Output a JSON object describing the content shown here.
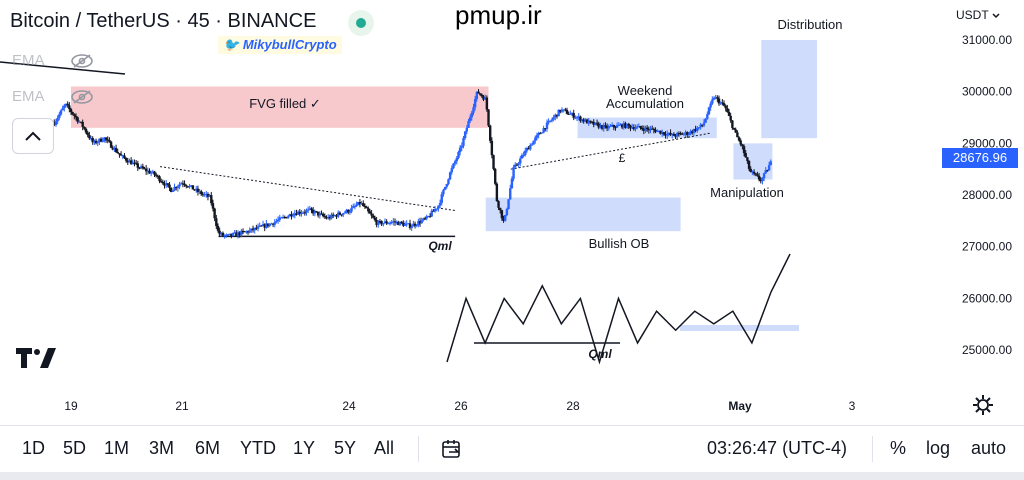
{
  "header": {
    "symbol_title": "Bitcoin / TetherUS · 45 · BINANCE",
    "watermark": "pmup.ir",
    "author": "MikybullCrypto",
    "currency_label": "USDT",
    "indicators": [
      "EMA",
      "EMA"
    ]
  },
  "colors": {
    "up": "#2962ff",
    "down": "#131722",
    "fvg_zone": "#f7c9cc",
    "blue_zone": "#cfdcfb",
    "accent": "#2962ff",
    "status_dot": "#22ab94"
  },
  "chart_data": {
    "type": "candlestick",
    "y_axis": {
      "ticks": [
        31000,
        30000,
        29000,
        28000,
        27000,
        26000,
        25000
      ],
      "tick_labels": [
        "31000.00",
        "30000.00",
        "29000.00",
        "28000.00",
        "27000.00",
        "26000.00",
        "25000.00"
      ],
      "current_price": 28676.96,
      "current_price_label": "28676.96"
    },
    "x_axis": {
      "tick_labels": [
        "19",
        "21",
        "24",
        "26",
        "28",
        "May",
        "3"
      ]
    },
    "price_path": [
      [
        18.7,
        29400
      ],
      [
        18.9,
        29750
      ],
      [
        19.05,
        29550
      ],
      [
        19.2,
        29350
      ],
      [
        19.4,
        29000
      ],
      [
        19.6,
        29100
      ],
      [
        19.9,
        28750
      ],
      [
        20.2,
        28550
      ],
      [
        20.5,
        28400
      ],
      [
        20.8,
        28100
      ],
      [
        21.0,
        28250
      ],
      [
        21.3,
        28050
      ],
      [
        21.5,
        27950
      ],
      [
        21.65,
        27250
      ],
      [
        21.8,
        27200
      ],
      [
        22.2,
        27300
      ],
      [
        22.6,
        27450
      ],
      [
        23.0,
        27650
      ],
      [
        23.3,
        27700
      ],
      [
        23.6,
        27550
      ],
      [
        24.0,
        27700
      ],
      [
        24.2,
        27850
      ],
      [
        24.5,
        27450
      ],
      [
        24.8,
        27480
      ],
      [
        25.1,
        27400
      ],
      [
        25.4,
        27550
      ],
      [
        25.6,
        27800
      ],
      [
        25.8,
        28400
      ],
      [
        26.0,
        28900
      ],
      [
        26.15,
        29450
      ],
      [
        26.3,
        30000
      ],
      [
        26.45,
        29850
      ],
      [
        26.55,
        28900
      ],
      [
        26.65,
        27900
      ],
      [
        26.78,
        27450
      ],
      [
        26.95,
        28500
      ],
      [
        27.2,
        28900
      ],
      [
        27.5,
        29300
      ],
      [
        27.8,
        29650
      ],
      [
        28.0,
        29550
      ],
      [
        28.3,
        29400
      ],
      [
        28.6,
        29300
      ],
      [
        28.9,
        29350
      ],
      [
        29.2,
        29300
      ],
      [
        29.5,
        29250
      ],
      [
        29.8,
        29150
      ],
      [
        30.1,
        29200
      ],
      [
        30.35,
        29350
      ],
      [
        30.55,
        29900
      ],
      [
        30.75,
        29700
      ],
      [
        30.95,
        29150
      ],
      [
        31.05,
        28950
      ],
      [
        31.2,
        28450
      ],
      [
        31.4,
        28280
      ],
      [
        31.6,
        28680
      ]
    ],
    "annotations": [
      {
        "type": "text",
        "text": "FVG filled ✓"
      },
      {
        "type": "text",
        "text": "Weekend Accumulation"
      },
      {
        "type": "text",
        "text": "£"
      },
      {
        "type": "text",
        "text": "Manipulation"
      },
      {
        "type": "text",
        "text": "Distribution"
      },
      {
        "type": "text",
        "text": "Bullish OB"
      },
      {
        "type": "text",
        "text": "Qml"
      },
      {
        "type": "text",
        "text": "Qml"
      }
    ],
    "zones": [
      {
        "name": "FVG filled",
        "x": [
          19.0,
          26.5
        ],
        "y": [
          29300,
          30100
        ],
        "color": "#f7c9cc"
      },
      {
        "name": "Bullish OB",
        "x": [
          26.45,
          29.95
        ],
        "y": [
          27300,
          27950
        ],
        "color": "#cfdcfb"
      },
      {
        "name": "Weekend Accumulation",
        "x": [
          28.1,
          30.6
        ],
        "y": [
          29100,
          29500
        ],
        "color": "#cfdcfb"
      },
      {
        "name": "Manipulation",
        "x": [
          30.9,
          31.6
        ],
        "y": [
          28300,
          29000
        ],
        "color": "#cfdcfb"
      },
      {
        "name": "Distribution",
        "x": [
          31.4,
          32.4
        ],
        "y": [
          29100,
          31000
        ],
        "color": "#cfdcfb"
      }
    ],
    "schematic": {
      "points": [
        [
          0,
          0.0
        ],
        [
          1,
          1.0
        ],
        [
          2,
          0.3
        ],
        [
          3,
          1.0
        ],
        [
          4,
          0.6
        ],
        [
          5,
          1.2
        ],
        [
          6,
          0.6
        ],
        [
          7,
          1.0
        ],
        [
          8,
          0.0
        ],
        [
          9,
          1.0
        ],
        [
          10,
          0.3
        ],
        [
          11,
          0.8
        ],
        [
          12,
          0.5
        ],
        [
          13,
          0.8
        ],
        [
          14,
          0.6
        ],
        [
          15,
          0.8
        ],
        [
          16,
          0.3
        ],
        [
          17,
          1.1
        ],
        [
          18,
          1.7
        ]
      ]
    }
  },
  "toolbar": {
    "timeframes": [
      "1D",
      "5D",
      "1M",
      "3M",
      "6M",
      "YTD",
      "1Y",
      "5Y",
      "All"
    ],
    "time": "03:26:47 (UTC-4)",
    "percent": "%",
    "log": "log",
    "auto": "auto"
  }
}
